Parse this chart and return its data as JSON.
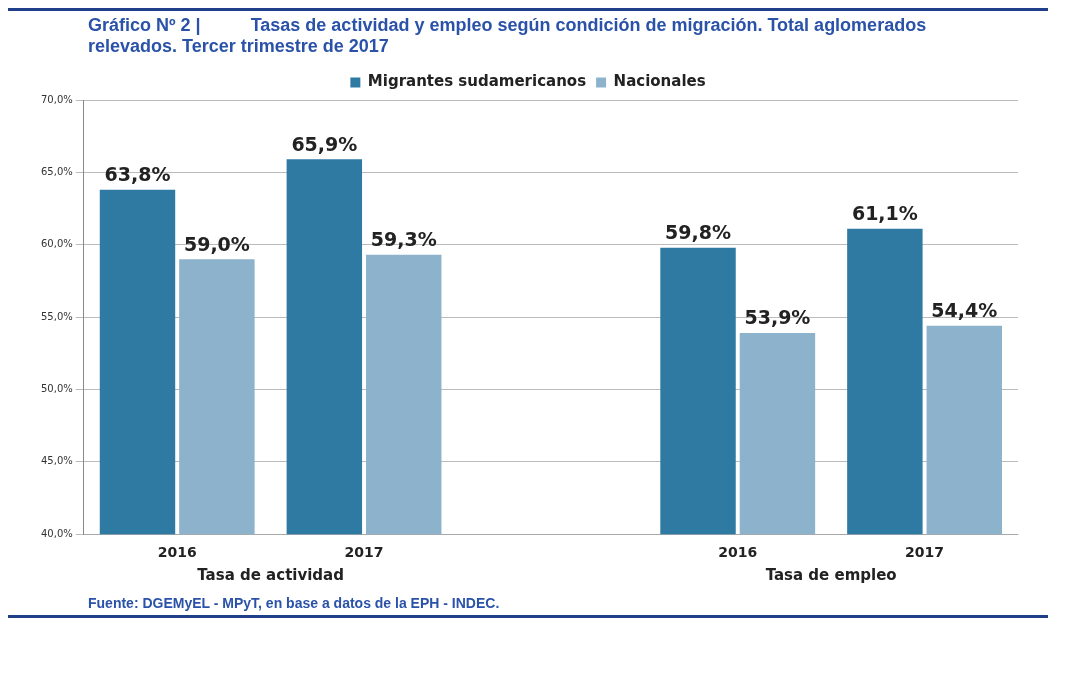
{
  "chart_data": {
    "type": "bar",
    "title": "Gráfico Nº 2 |          Tasas de actividad y empleo según condición de migración. Total aglomerados relevados. Tercer trimestre de 2017",
    "categories": [
      "2016",
      "2017",
      null,
      "2016",
      "2017"
    ],
    "series": [
      {
        "name": "Migrantes sudamericanos",
        "color": "#2f7aa3",
        "values": [
          63.8,
          65.9,
          null,
          59.8,
          61.1
        ],
        "value_labels": [
          "63,8%",
          "65,9%",
          null,
          "59,8%",
          "61,1%"
        ]
      },
      {
        "name": "Nacionales",
        "color": "#8cb2cc",
        "values": [
          59.0,
          59.3,
          null,
          53.9,
          54.4
        ],
        "value_labels": [
          "59,0%",
          "59,3%",
          null,
          "53,9%",
          "54,4%"
        ]
      }
    ],
    "ylim": [
      40,
      70
    ],
    "yticks": [
      {
        "value": 40,
        "label": "40,0%"
      },
      {
        "value": 45,
        "label": "45,0%"
      },
      {
        "value": 50,
        "label": "50,0%"
      },
      {
        "value": 55,
        "label": "55,0%"
      },
      {
        "value": 60,
        "label": "60,0%"
      },
      {
        "value": 65,
        "label": "65,0%"
      },
      {
        "value": 70,
        "label": "70,0%"
      }
    ],
    "grid": "y",
    "legend": "top",
    "annotations": [
      "Tasa de actividad",
      "Tasa de empleo",
      "Fuente: DGEMyEL - MPyT, en base a datos de la EPH - INDEC."
    ]
  }
}
